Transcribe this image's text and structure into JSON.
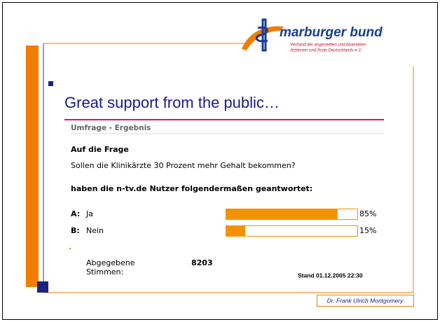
{
  "logo": {
    "name": "marburger bund",
    "tagline": [
      "Verband der angestellten und beamteten",
      "Ärztinnen und Ärzte Deutschlands e.V."
    ]
  },
  "title": "Great support from the public…",
  "poll": {
    "heading": "Umfrage - Ergebnis",
    "intro": "Auf die Frage",
    "question": "Sollen die Klinikärzte 30 Prozent mehr Gehalt bekommen?",
    "answer_intro": "haben die n-tv.de Nutzer folgendermaßen geantwortet:",
    "options": [
      {
        "key": "A:",
        "label": "Ja",
        "value": 85,
        "value_label": "85%"
      },
      {
        "key": "B:",
        "label": "Nein",
        "value": 15,
        "value_label": "15%"
      }
    ],
    "votes_label": [
      "Abgegebene",
      "Stimmen:"
    ],
    "votes": "8203",
    "timestamp": "Stand 01.12.2005 22:30"
  },
  "footer": "Dr. Frank Ulrich Montgomery"
}
